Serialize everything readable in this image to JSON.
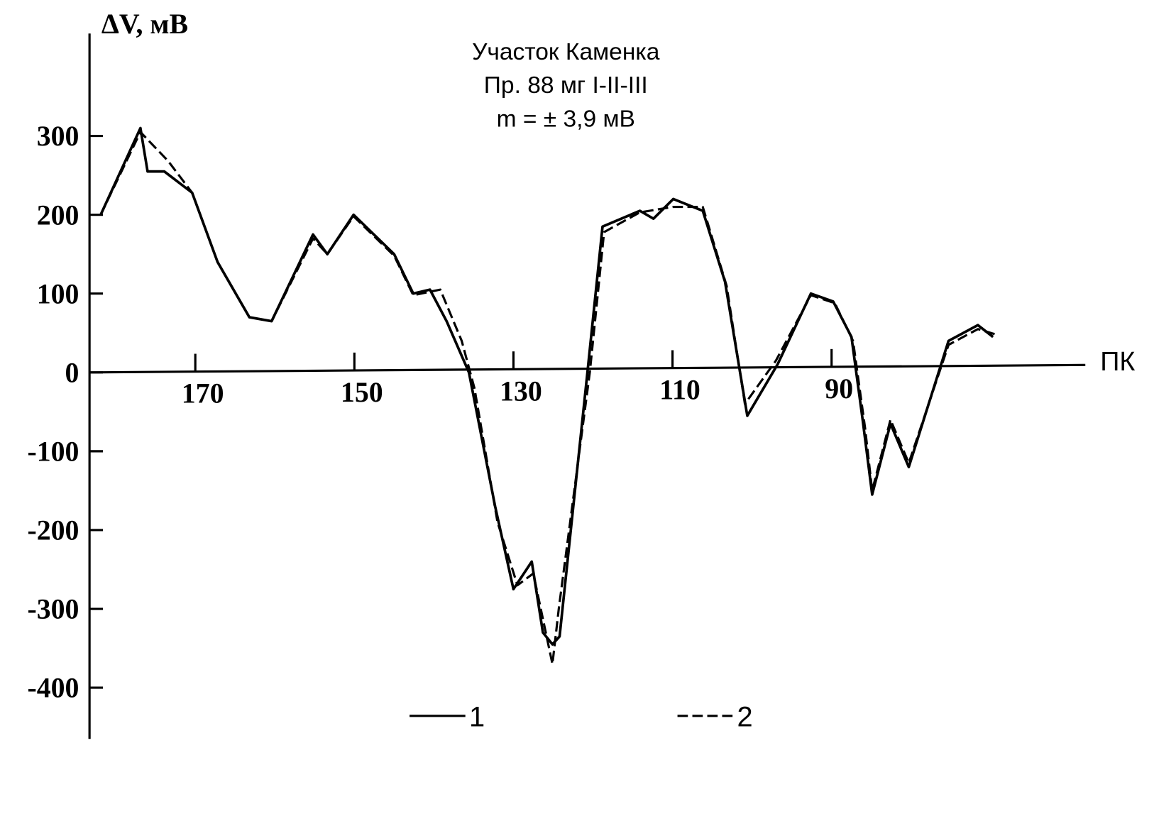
{
  "chart_data": {
    "type": "line",
    "title": "Участок Каменка",
    "subtitle": "Пр. 88 мг I-II-III",
    "annotation": "m = ± 3,9 мВ",
    "y_label": "ΔV, мВ",
    "x_label": "ПК",
    "xlim": [
      183.3,
      58.1
    ],
    "ylim": [
      -465,
      430
    ],
    "xticks": [
      170,
      150,
      130,
      110,
      90
    ],
    "yticks": [
      -400,
      -300,
      -200,
      -100,
      0,
      100,
      200,
      300
    ],
    "series": [
      {
        "name": "1",
        "color": "#000000",
        "dash": "solid",
        "x": [
          181.9,
          176.9,
          176,
          173.9,
          170.4,
          167.2,
          163.2,
          160.4,
          155.2,
          153.4,
          150.1,
          145,
          142.6,
          140.5,
          138.4,
          135.6,
          132.3,
          130,
          127.7,
          126.3,
          125.1,
          124.2,
          120.7,
          118.8,
          114.1,
          112.4,
          109.9,
          106.2,
          103.4,
          100.6,
          96.8,
          92.6,
          89.8,
          87.5,
          86.1,
          84.9,
          82.6,
          80.3,
          75.3,
          71.6,
          69.7
        ],
        "values": [
          200,
          310,
          255,
          255,
          228,
          140,
          70,
          65,
          175,
          150,
          200,
          150,
          100,
          105,
          65,
          0,
          -170,
          -275,
          -240,
          -330,
          -345,
          -335,
          0,
          185,
          205,
          195,
          220,
          205,
          115,
          -55,
          10,
          100,
          90,
          45,
          -60,
          -155,
          -65,
          -120,
          40,
          60,
          45
        ]
      },
      {
        "name": "2",
        "color": "#000000",
        "dash": "dashed",
        "x": [
          181.9,
          176.9,
          173.4,
          170.4,
          167.2,
          163.2,
          160.4,
          155.2,
          153.4,
          150.1,
          145,
          142.6,
          139.2,
          136.5,
          134.9,
          132,
          129.5,
          127.5,
          125.1,
          124.3,
          123.2,
          120.4,
          118.6,
          114.1,
          109.9,
          106.2,
          103.2,
          100.9,
          97,
          92.6,
          89.6,
          87.3,
          85.8,
          84.9,
          82.6,
          80.3,
          75.3,
          71.6,
          69.3
        ],
        "values": [
          200,
          305,
          268,
          228,
          140,
          70,
          65,
          170,
          150,
          198,
          148,
          98,
          105,
          40,
          -20,
          -190,
          -270,
          -255,
          -370,
          -300,
          -215,
          0,
          178,
          203,
          210,
          210,
          110,
          -40,
          15,
          98,
          88,
          40,
          -70,
          -150,
          -60,
          -115,
          35,
          55,
          48
        ]
      }
    ],
    "grid": false
  }
}
